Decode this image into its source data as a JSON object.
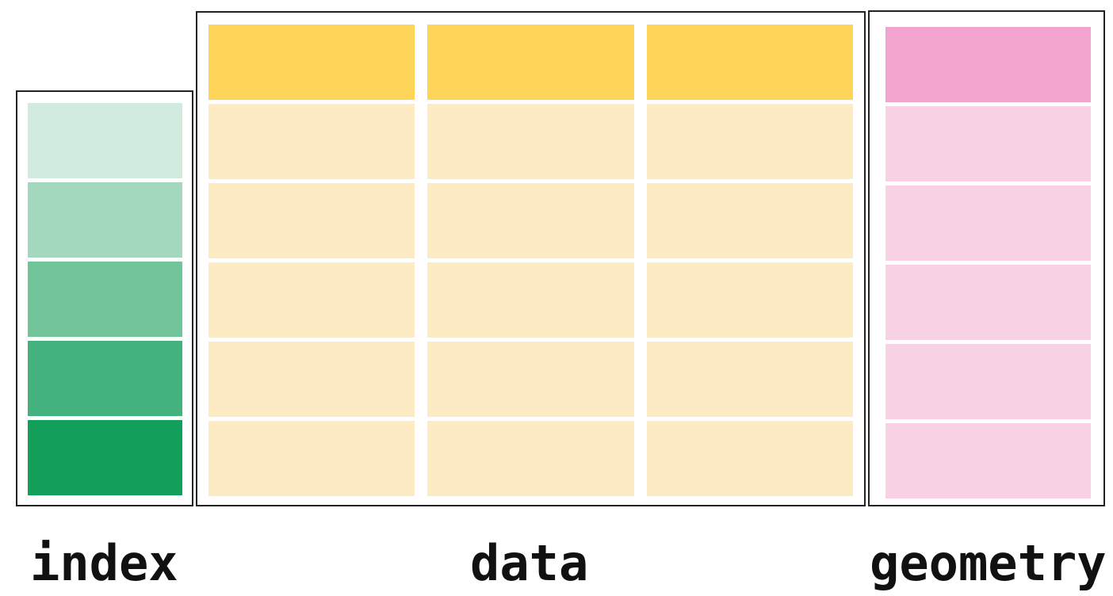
{
  "labels": {
    "index": "index",
    "data": "data",
    "geometry": "geometry"
  },
  "colors": {
    "frame_border": "#222222",
    "index_shades": [
      "#d1ebde",
      "#a3d8bf",
      "#72c49b",
      "#43b27e",
      "#119f59"
    ],
    "data_header": "#ffd559",
    "data_cell": "#fdecc3",
    "geometry_header": "#f2a4cf",
    "geometry_cell": "#f8d1e5"
  },
  "structure": {
    "index_rows": 5,
    "data_columns": 3,
    "data_body_rows": 5,
    "geometry_body_rows": 5
  }
}
